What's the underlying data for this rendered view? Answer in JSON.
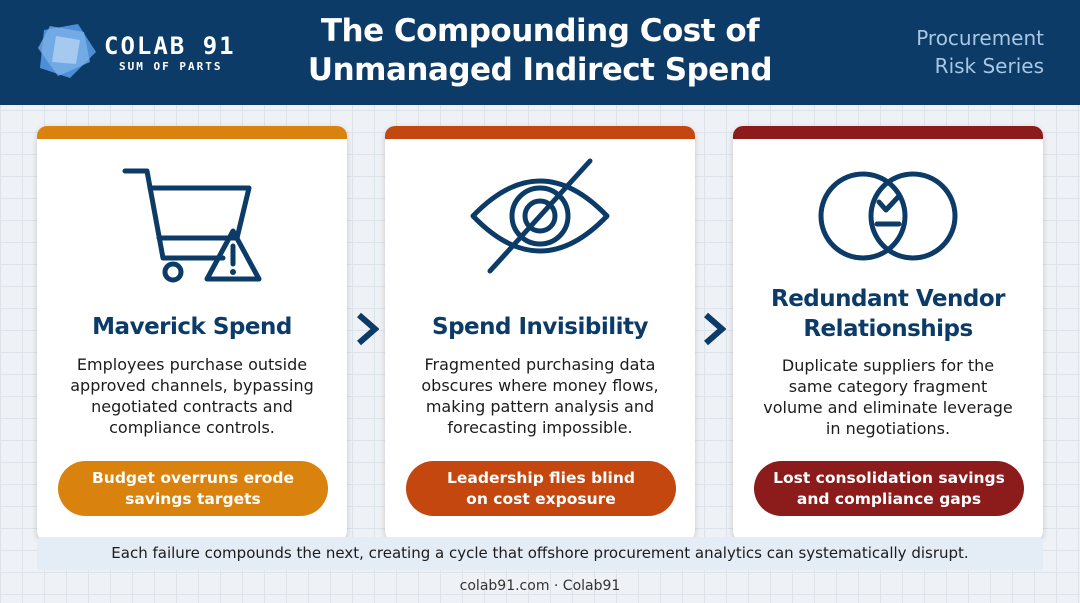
{
  "header": {
    "brand_name": "COLAB 91",
    "brand_tagline": "SUM OF PARTS",
    "title_line1": "The Compounding Cost of",
    "title_line2": "Unmanaged Indirect Spend",
    "series_line1": "Procurement",
    "series_line2": "Risk Series"
  },
  "colors": {
    "header_bg": "#0b3b66",
    "title_text": "#0b3b66",
    "card1_accent": "#d9820e",
    "card2_accent": "#c4470f",
    "card3_accent": "#8c1c1c"
  },
  "cards": [
    {
      "icon": "shopping-cart-warning-icon",
      "title_line1": "Maverick Spend",
      "title_line2": "",
      "text": [
        "Employees purchase outside",
        "approved channels, bypassing",
        "negotiated contracts and",
        "compliance controls."
      ],
      "pill_line1": "Budget overruns erode",
      "pill_line2": "savings targets"
    },
    {
      "icon": "eye-slash-icon",
      "title_line1": "Spend Invisibility",
      "title_line2": "",
      "text": [
        "Fragmented purchasing data",
        "obscures where money flows,",
        "making pattern analysis and",
        "forecasting impossible."
      ],
      "pill_line1": "Leadership flies blind",
      "pill_line2": "on cost exposure"
    },
    {
      "icon": "overlapping-circles-icon",
      "title_line1": "Redundant Vendor",
      "title_line2": "Relationships",
      "text": [
        "Duplicate suppliers for the",
        "same category fragment",
        "volume and eliminate leverage",
        "in negotiations."
      ],
      "pill_line1": "Lost consolidation savings",
      "pill_line2": "and compliance gaps"
    }
  ],
  "footer": {
    "summary": "Each failure compounds the next, creating a cycle that offshore procurement analytics can systematically disrupt.",
    "link": "colab91.com · Colab91"
  }
}
